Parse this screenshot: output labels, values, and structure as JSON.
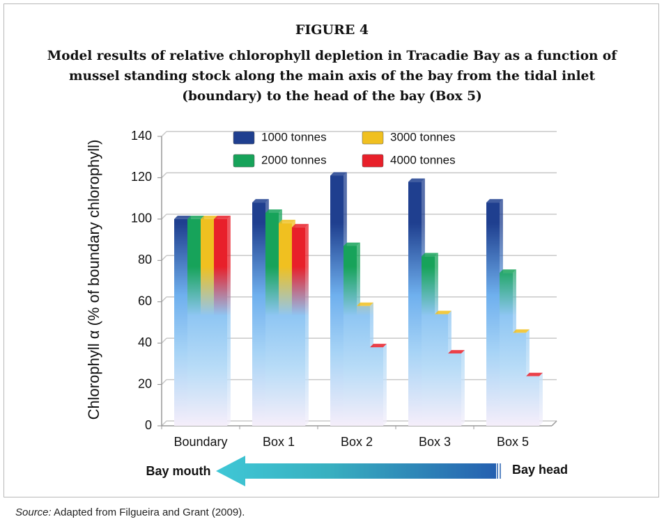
{
  "chart_data": {
    "type": "bar",
    "title": "FIGURE 4",
    "subtitle": "Model results of relative chlorophyll depletion in Tracadie Bay as a function of mussel standing stock along the main axis of the bay from the tidal inlet (boundary) to the head of the bay (Box 5)",
    "y_label": "Chlorophyll α (% of boundary chlorophyll)",
    "categories": [
      "Boundary",
      "Box 1",
      "Box 2",
      "Box 3",
      "Box 5"
    ],
    "series": [
      {
        "name": "1000 tonnes",
        "color": "#1f3f8f",
        "values": [
          100,
          108,
          121,
          118,
          108
        ]
      },
      {
        "name": "2000 tonnes",
        "color": "#17a35a",
        "values": [
          100,
          103,
          87,
          82,
          74
        ]
      },
      {
        "name": "3000 tonnes",
        "color": "#f0c020",
        "values": [
          100,
          98,
          58,
          54,
          45
        ]
      },
      {
        "name": "4000 tonnes",
        "color": "#e8202a",
        "values": [
          100,
          96,
          38,
          35,
          24
        ]
      }
    ],
    "ylim": [
      0,
      140
    ],
    "yticks": [
      0,
      20,
      40,
      60,
      80,
      100,
      120,
      140
    ],
    "grid": true,
    "legend": "top",
    "annotations": [
      "Bay mouth",
      "Bay head"
    ],
    "source_label": "Source:",
    "source_text": "Adapted from Filgueira and Grant (2009)."
  }
}
